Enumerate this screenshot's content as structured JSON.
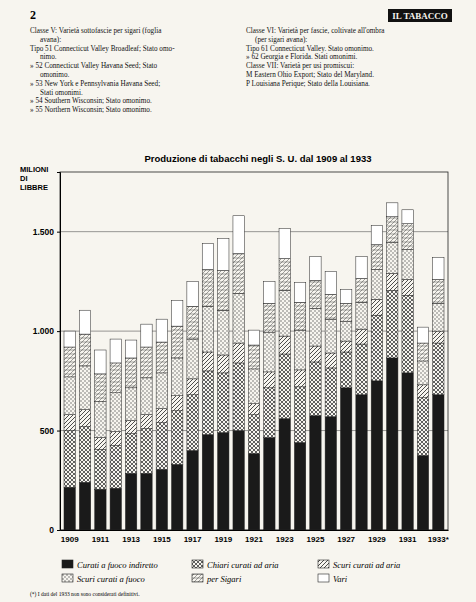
{
  "page": {
    "number": "2",
    "header": "IL TABACCO",
    "left_column": [
      "Classe V: Varietà sottofascie per sigari (foglia",
      "avana):",
      "Tipo 51 Connecticut Valley Broadleaf; Stato omo-",
      "nimo.",
      "» 52 Connecticut Valley Havana Seed; Stato",
      "omonimo.",
      "» 53 New York e Pennsylvania Havana Seed;",
      "Stati omonimi.",
      "» 54 Southern Wisconsin; Stato omonimo.",
      "» 55 Northern Wisconsin; Stato omonimo."
    ],
    "right_column": [
      "Classe VI: Varietà per fascie, coltivate all'ombra",
      "(per sigari avana):",
      "Tipo 61 Connecticut Valley. Stato omonimo.",
      "» 62 Georgia e Florida. Stati omonimi.",
      "Classe VII: Varietà per usi promiscui:",
      "M Eastern Ohio Export; Stato del Maryland.",
      "P Louisiana Perique; Stato della Louisiana."
    ],
    "footnote": "(*) I dati del 1933 non sono considerati definitivi."
  },
  "chart_data": {
    "type": "bar",
    "stacked": true,
    "title": "Produzione di tabacchi negli S. U. dal 1909 al 1933",
    "y_label": "MILIONI DI LIBBRE",
    "categories": [
      "1909",
      null,
      "1911",
      null,
      "1913",
      null,
      "1915",
      null,
      "1917",
      null,
      "1919",
      null,
      "1921",
      null,
      "1923",
      null,
      "1925",
      null,
      "1927",
      null,
      "1929",
      null,
      "1931",
      null,
      "1933*"
    ],
    "ylim": [
      0,
      1800
    ],
    "yticks": [
      0,
      500,
      {
        "value": 1000,
        "label": "1.000"
      },
      {
        "value": 1500,
        "label": "1.500"
      }
    ],
    "grid": true,
    "legend": "bottom",
    "series": [
      {
        "name": "Curati a fuoco indiretto",
        "color": "#1a1a1a",
        "values": [
          215,
          240,
          205,
          210,
          285,
          285,
          305,
          330,
          400,
          480,
          490,
          500,
          385,
          465,
          560,
          440,
          575,
          570,
          715,
          680,
          750,
          865,
          790,
          375,
          680
        ]
      },
      {
        "name": "Chiari curati ad aria",
        "color": "#3a3a3a",
        "values": [
          285,
          280,
          200,
          215,
          200,
          225,
          235,
          270,
          280,
          320,
          300,
          340,
          195,
          250,
          325,
          280,
          270,
          245,
          180,
          255,
          330,
          340,
          390,
          290,
          260
        ]
      },
      {
        "name": "Scuri curati ad aria",
        "color": "#3a3a3a",
        "values": [
          80,
          85,
          60,
          70,
          65,
          70,
          70,
          75,
          80,
          95,
          90,
          100,
          55,
          80,
          90,
          85,
          80,
          75,
          55,
          75,
          80,
          85,
          80,
          65,
          60
        ]
      },
      {
        "name": "Scuri curati a fuoco",
        "color": "#555555",
        "values": [
          190,
          220,
          180,
          195,
          165,
          185,
          180,
          190,
          200,
          230,
          225,
          250,
          175,
          200,
          230,
          200,
          190,
          170,
          100,
          135,
          150,
          155,
          150,
          120,
          140
        ]
      },
      {
        "name": "per Sigari",
        "color": "#444444",
        "values": [
          150,
          160,
          140,
          150,
          150,
          155,
          155,
          160,
          165,
          185,
          200,
          200,
          120,
          145,
          160,
          140,
          140,
          125,
          90,
          120,
          125,
          130,
          130,
          90,
          120
        ]
      },
      {
        "name": "Vari",
        "color": "#ffffff",
        "values": [
          80,
          120,
          120,
          120,
          90,
          115,
          115,
          130,
          125,
          130,
          160,
          190,
          75,
          110,
          150,
          100,
          120,
          115,
          70,
          110,
          95,
          70,
          70,
          80,
          110
        ]
      }
    ]
  }
}
